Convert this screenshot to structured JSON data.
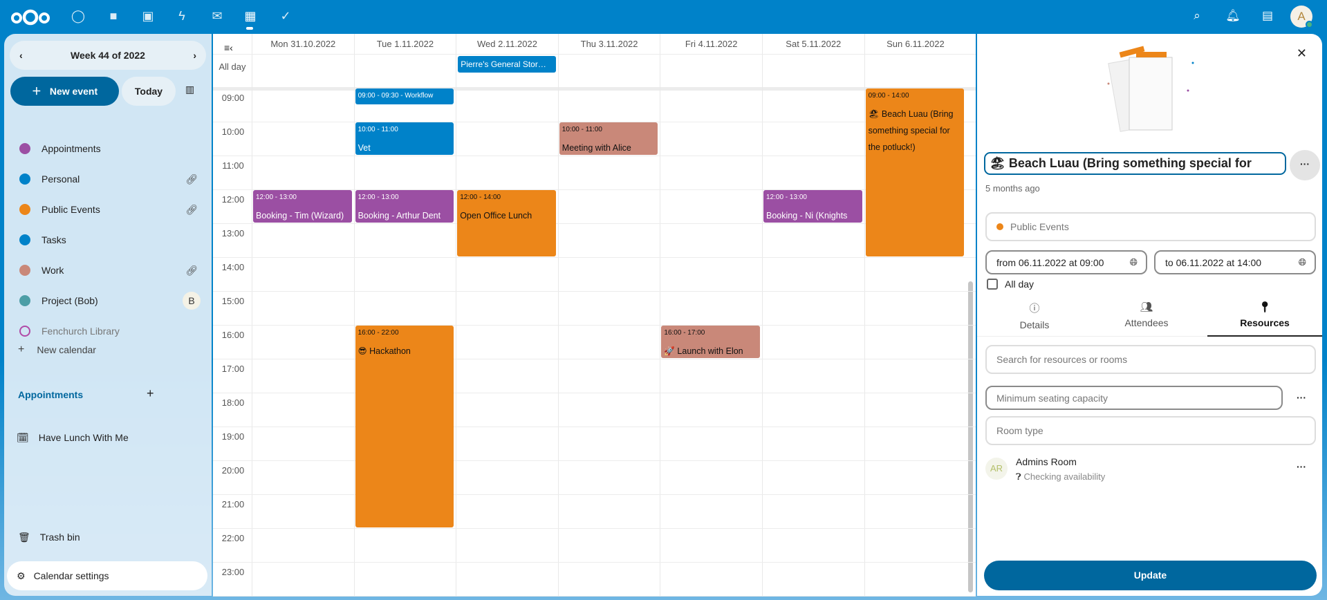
{
  "topbar": {
    "apps": [
      "dashboard-icon",
      "files-icon",
      "photos-icon",
      "activity-icon",
      "mail-icon",
      "calendar-icon",
      "tasks-icon"
    ],
    "avatar": "A"
  },
  "sidebar": {
    "week_label": "Week 44 of 2022",
    "new_event": "New event",
    "today": "Today",
    "calendars": [
      {
        "name": "Appointments",
        "color": "#9b4fa3",
        "shared": false
      },
      {
        "name": "Personal",
        "color": "#0082c9",
        "shared": true
      },
      {
        "name": "Public Events",
        "color": "#ec8619",
        "shared": true
      },
      {
        "name": "Tasks",
        "color": "#0082c9",
        "shared": false
      },
      {
        "name": "Work",
        "color": "#c98879",
        "shared": true
      },
      {
        "name": "Project (Bob)",
        "color": "#4c9ea6",
        "owner_badge": "B"
      },
      {
        "name": "Fenchurch Library",
        "color": "#b04aa7",
        "disabled": true
      }
    ],
    "new_calendar": "New calendar",
    "appointments_heading": "Appointments",
    "appointment_item": "Have Lunch With Me",
    "trash": "Trash bin",
    "settings": "Calendar settings"
  },
  "calendar": {
    "days": [
      "Mon 31.10.2022",
      "Tue 1.11.2022",
      "Wed 2.11.2022",
      "Thu 3.11.2022",
      "Fri 4.11.2022",
      "Sat 5.11.2022",
      "Sun 6.11.2022"
    ],
    "all_day_label": "All day",
    "all_day_events": [
      {
        "day": 2,
        "title": "Pierre's General Stor…",
        "color": "#0082c9"
      }
    ],
    "hours": [
      "09:00",
      "10:00",
      "11:00",
      "12:00",
      "13:00",
      "14:00",
      "15:00",
      "16:00",
      "17:00",
      "18:00",
      "19:00",
      "20:00",
      "21:00",
      "22:00",
      "23:00"
    ],
    "events": [
      {
        "day": 1,
        "start": 9,
        "end": 9.5,
        "time": "09:00 - 09:30 - Workflow",
        "title": "",
        "color": "#0082c9",
        "dark": false
      },
      {
        "day": 1,
        "start": 10,
        "end": 11,
        "time": "10:00 - 11:00",
        "title": "Vet",
        "color": "#0082c9",
        "dark": false
      },
      {
        "day": 3,
        "start": 10,
        "end": 11,
        "time": "10:00 - 11:00",
        "title": "Meeting with Alice",
        "color": "#c98879",
        "dark": true
      },
      {
        "day": 0,
        "start": 12,
        "end": 13,
        "time": "12:00 - 13:00",
        "title": "Booking - Tim (Wizard)",
        "color": "#9b4fa3",
        "dark": false
      },
      {
        "day": 1,
        "start": 12,
        "end": 13,
        "time": "12:00 - 13:00",
        "title": "Booking - Arthur Dent",
        "color": "#9b4fa3",
        "dark": false
      },
      {
        "day": 2,
        "start": 12,
        "end": 14,
        "time": "12:00 - 14:00",
        "title": "Open Office Lunch",
        "color": "#ec8619",
        "dark": true
      },
      {
        "day": 5,
        "start": 12,
        "end": 13,
        "time": "12:00 - 13:00",
        "title": "Booking - Ni (Knights",
        "color": "#9b4fa3",
        "dark": false
      },
      {
        "day": 6,
        "start": 9,
        "end": 14,
        "time": "09:00 - 14:00",
        "title": "🏖 Beach Luau (Bring something special for the potluck!)",
        "color": "#ec8619",
        "dark": true
      },
      {
        "day": 1,
        "start": 16,
        "end": 22,
        "time": "16:00 - 22:00",
        "title": "😎 Hackathon",
        "color": "#ec8619",
        "dark": true
      },
      {
        "day": 4,
        "start": 16,
        "end": 17,
        "time": "16:00 - 17:00",
        "title": "🚀 Launch with Elon",
        "color": "#c98879",
        "dark": true
      }
    ]
  },
  "editor": {
    "title": "🏖 Beach Luau (Bring something special for",
    "modified": "5 months ago",
    "calendar": "Public Events",
    "calendar_color": "#ec8619",
    "from": "from 06.11.2022 at 09:00",
    "to": "to 06.11.2022 at 14:00",
    "all_day": "All day",
    "all_day_checked": false,
    "tabs": [
      {
        "label": "Details",
        "icon": "info-icon"
      },
      {
        "label": "Attendees",
        "icon": "people-icon"
      },
      {
        "label": "Resources",
        "icon": "map-marker-icon",
        "active": true
      }
    ],
    "search_placeholder": "Search for resources or rooms",
    "capacity_placeholder": "Minimum seating capacity",
    "room_type_placeholder": "Room type",
    "resource": {
      "initials": "AR",
      "name": "Admins Room",
      "status": "Checking availability"
    },
    "update": "Update"
  }
}
